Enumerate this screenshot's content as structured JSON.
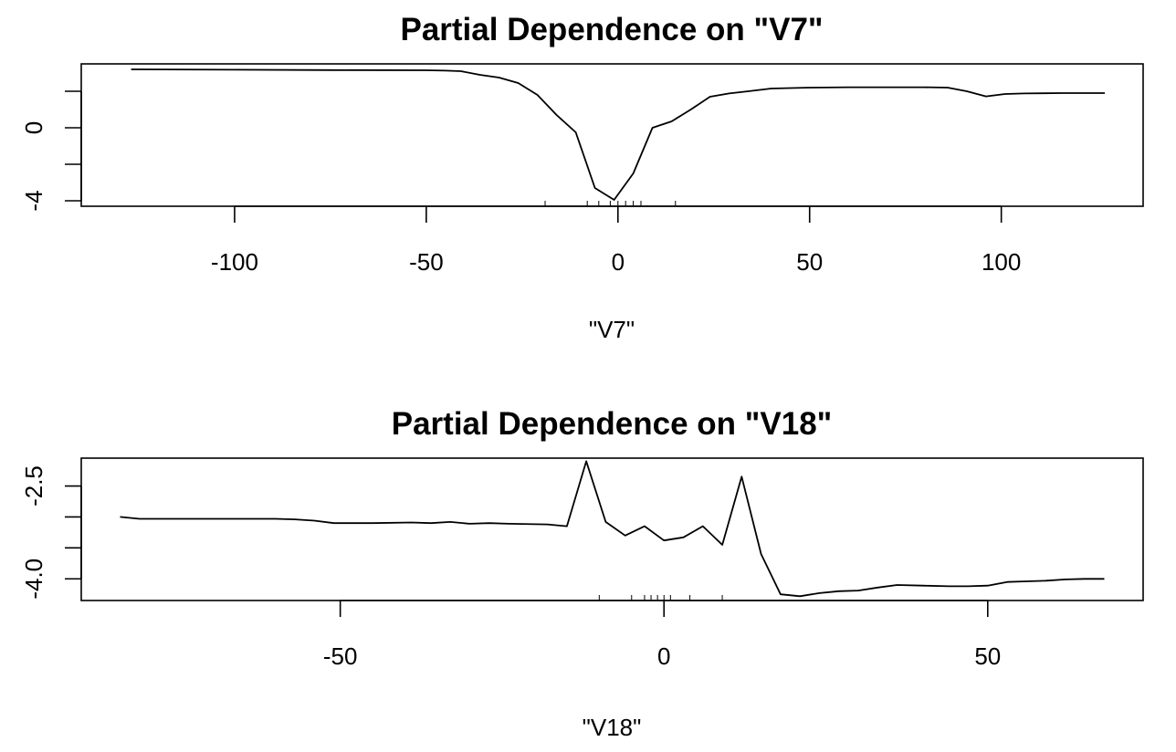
{
  "chart_data": [
    {
      "type": "line",
      "title": "Partial Dependence on \"V7\"",
      "xlabel": "\"V7\"",
      "ylabel": "",
      "xlim": [
        -140,
        137
      ],
      "ylim": [
        -4.3,
        3.5
      ],
      "x_ticks": [
        -100,
        -50,
        0,
        50,
        100
      ],
      "x_tick_labels": [
        "-100",
        "-50",
        "0",
        "50",
        "100"
      ],
      "y_ticks": [
        -4,
        -2,
        0,
        2
      ],
      "y_tick_labels": [
        "-4",
        "",
        "0",
        ""
      ],
      "grid": false,
      "rug": [
        -19,
        -8,
        -5,
        -2,
        0,
        2,
        4,
        6,
        15
      ],
      "series": [
        {
          "x": [
            -127,
            -100,
            -75,
            -50,
            -45,
            -41,
            -36,
            -31,
            -26,
            -21,
            -16,
            -11,
            -6,
            -1,
            4,
            9,
            14,
            19,
            24,
            29,
            34,
            40,
            50,
            60,
            70,
            80,
            86,
            91,
            96,
            101,
            106,
            116,
            127
          ],
          "y": [
            3.2,
            3.18,
            3.16,
            3.15,
            3.13,
            3.1,
            2.9,
            2.75,
            2.45,
            1.8,
            0.7,
            -0.25,
            -3.3,
            -3.95,
            -2.5,
            0.0,
            0.35,
            1.0,
            1.7,
            1.88,
            2.0,
            2.15,
            2.2,
            2.22,
            2.22,
            2.22,
            2.2,
            2.0,
            1.72,
            1.85,
            1.88,
            1.9,
            1.9
          ]
        }
      ]
    },
    {
      "type": "line",
      "title": "Partial Dependence on \"V18\"",
      "xlabel": "\"V18\"",
      "ylabel": "",
      "xlim": [
        -90,
        74
      ],
      "ylim": [
        -4.35,
        -2.05
      ],
      "x_ticks": [
        -50,
        0,
        50
      ],
      "x_tick_labels": [
        "-50",
        "0",
        "50"
      ],
      "y_ticks": [
        -4.0,
        -3.5,
        -3.0,
        -2.5
      ],
      "y_tick_labels": [
        "-4.0",
        "",
        "",
        "-2.5"
      ],
      "grid": false,
      "rug": [
        -10,
        -5,
        -3,
        -2,
        -1,
        0,
        1,
        4,
        9
      ],
      "series": [
        {
          "x": [
            -84,
            -81,
            -75,
            -70,
            -65,
            -60,
            -57,
            -54,
            -51,
            -45,
            -39,
            -36,
            -33,
            -30,
            -27,
            -24,
            -18,
            -15,
            -12,
            -9,
            -6,
            -3,
            0,
            3,
            6,
            9,
            12,
            15,
            18,
            21,
            24,
            27,
            30,
            33,
            36,
            40,
            44,
            47,
            50,
            53,
            56,
            59,
            62,
            65,
            68
          ],
          "y": [
            -3.0,
            -3.03,
            -3.03,
            -3.03,
            -3.03,
            -3.03,
            -3.04,
            -3.06,
            -3.1,
            -3.1,
            -3.09,
            -3.1,
            -3.08,
            -3.11,
            -3.1,
            -3.11,
            -3.12,
            -3.15,
            -2.1,
            -3.08,
            -3.3,
            -3.15,
            -3.38,
            -3.33,
            -3.15,
            -3.45,
            -2.35,
            -3.6,
            -4.25,
            -4.28,
            -4.23,
            -4.2,
            -4.19,
            -4.14,
            -4.1,
            -4.11,
            -4.12,
            -4.12,
            -4.11,
            -4.05,
            -4.04,
            -4.03,
            -4.01,
            -4.0,
            -4.0
          ]
        }
      ]
    }
  ]
}
